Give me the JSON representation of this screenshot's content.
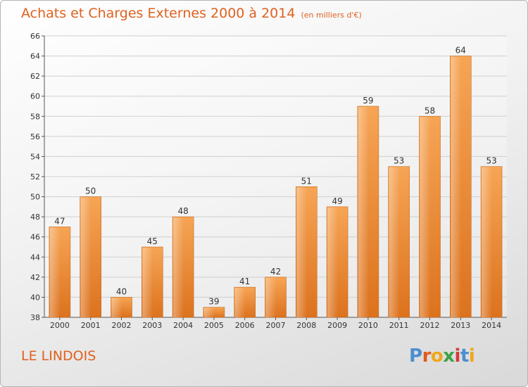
{
  "title": "Achats et Charges Externes 2000 à 2014",
  "unit": "(en milliers d'€)",
  "commune": "LE LINDOIS",
  "logo": {
    "letters": [
      {
        "char": "P",
        "color": "#4a8fd0"
      },
      {
        "char": "r",
        "color": "#e05a1c"
      },
      {
        "char": "o",
        "color": "#f0a71a"
      },
      {
        "char": "x",
        "color": "#3aa445"
      },
      {
        "char": "i",
        "color": "#d63a3a"
      },
      {
        "char": "t",
        "color": "#4a8fd0"
      },
      {
        "char": "i",
        "color": "#f0a71a"
      }
    ]
  },
  "chart_data": {
    "type": "bar",
    "categories": [
      "2000",
      "2001",
      "2002",
      "2003",
      "2004",
      "2005",
      "2006",
      "2007",
      "2008",
      "2009",
      "2010",
      "2011",
      "2012",
      "2013",
      "2014"
    ],
    "values": [
      47,
      50,
      40,
      45,
      48,
      39,
      41,
      42,
      51,
      49,
      59,
      53,
      58,
      64,
      53
    ],
    "ylim": [
      38,
      66
    ],
    "yticks": [
      38,
      40,
      42,
      44,
      46,
      48,
      50,
      52,
      54,
      56,
      58,
      60,
      62,
      64,
      66
    ],
    "grid": true,
    "bar_color": "#f2963f",
    "legend": "none"
  }
}
